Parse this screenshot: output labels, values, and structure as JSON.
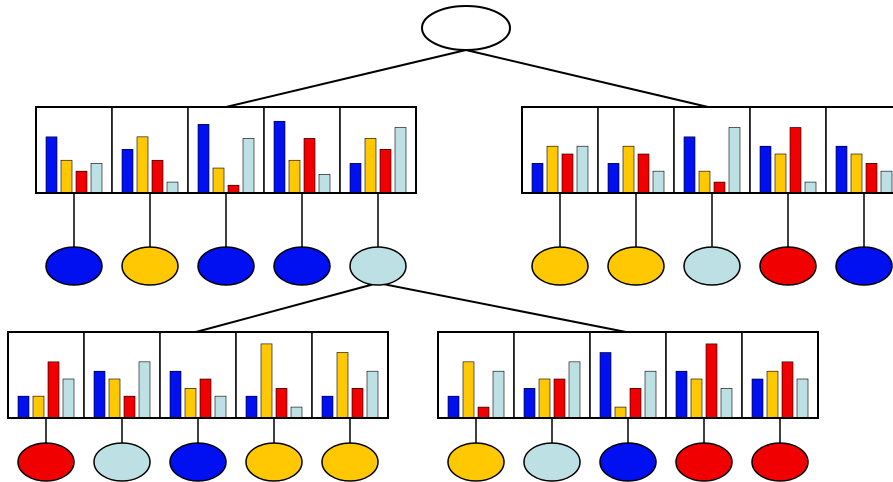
{
  "palette": {
    "blue": "#0010F0",
    "gold": "#FFC800",
    "red": "#F00000",
    "lightblue": "#BDE0E5",
    "stroke": "#000000",
    "root_fill": "#FFFFFF"
  },
  "bar_order": [
    "blue",
    "gold",
    "red",
    "lightblue"
  ],
  "groups": [
    {
      "id": "top-left",
      "cells": [
        {
          "bars": [
            0.72,
            0.42,
            0.28,
            0.38
          ],
          "node": "blue"
        },
        {
          "bars": [
            0.56,
            0.72,
            0.42,
            0.14
          ],
          "node": "gold"
        },
        {
          "bars": [
            0.88,
            0.32,
            0.1,
            0.7
          ],
          "node": "blue"
        },
        {
          "bars": [
            0.92,
            0.42,
            0.7,
            0.24
          ],
          "node": "blue"
        },
        {
          "bars": [
            0.38,
            0.7,
            0.56,
            0.84
          ],
          "node": "lightblue"
        }
      ]
    },
    {
      "id": "top-right",
      "cells": [
        {
          "bars": [
            0.38,
            0.6,
            0.5,
            0.6
          ],
          "node": "gold"
        },
        {
          "bars": [
            0.38,
            0.6,
            0.5,
            0.28
          ],
          "node": "gold"
        },
        {
          "bars": [
            0.72,
            0.28,
            0.14,
            0.84
          ],
          "node": "lightblue"
        },
        {
          "bars": [
            0.6,
            0.5,
            0.84,
            0.14
          ],
          "node": "red"
        },
        {
          "bars": [
            0.6,
            0.5,
            0.38,
            0.28
          ],
          "node": "blue"
        }
      ]
    },
    {
      "id": "bottom-left",
      "cells": [
        {
          "bars": [
            0.28,
            0.28,
            0.72,
            0.5
          ],
          "node": "red"
        },
        {
          "bars": [
            0.6,
            0.5,
            0.28,
            0.72
          ],
          "node": "lightblue"
        },
        {
          "bars": [
            0.6,
            0.38,
            0.5,
            0.28
          ],
          "node": "blue"
        },
        {
          "bars": [
            0.28,
            0.95,
            0.38,
            0.14
          ],
          "node": "gold"
        },
        {
          "bars": [
            0.28,
            0.84,
            0.38,
            0.6
          ],
          "node": "gold"
        }
      ]
    },
    {
      "id": "bottom-right",
      "cells": [
        {
          "bars": [
            0.28,
            0.72,
            0.14,
            0.6
          ],
          "node": "gold"
        },
        {
          "bars": [
            0.38,
            0.5,
            0.5,
            0.72
          ],
          "node": "lightblue"
        },
        {
          "bars": [
            0.84,
            0.14,
            0.38,
            0.6
          ],
          "node": "blue"
        },
        {
          "bars": [
            0.6,
            0.5,
            0.95,
            0.38
          ],
          "node": "red"
        },
        {
          "bars": [
            0.5,
            0.6,
            0.72,
            0.5
          ],
          "node": "red"
        }
      ]
    }
  ]
}
